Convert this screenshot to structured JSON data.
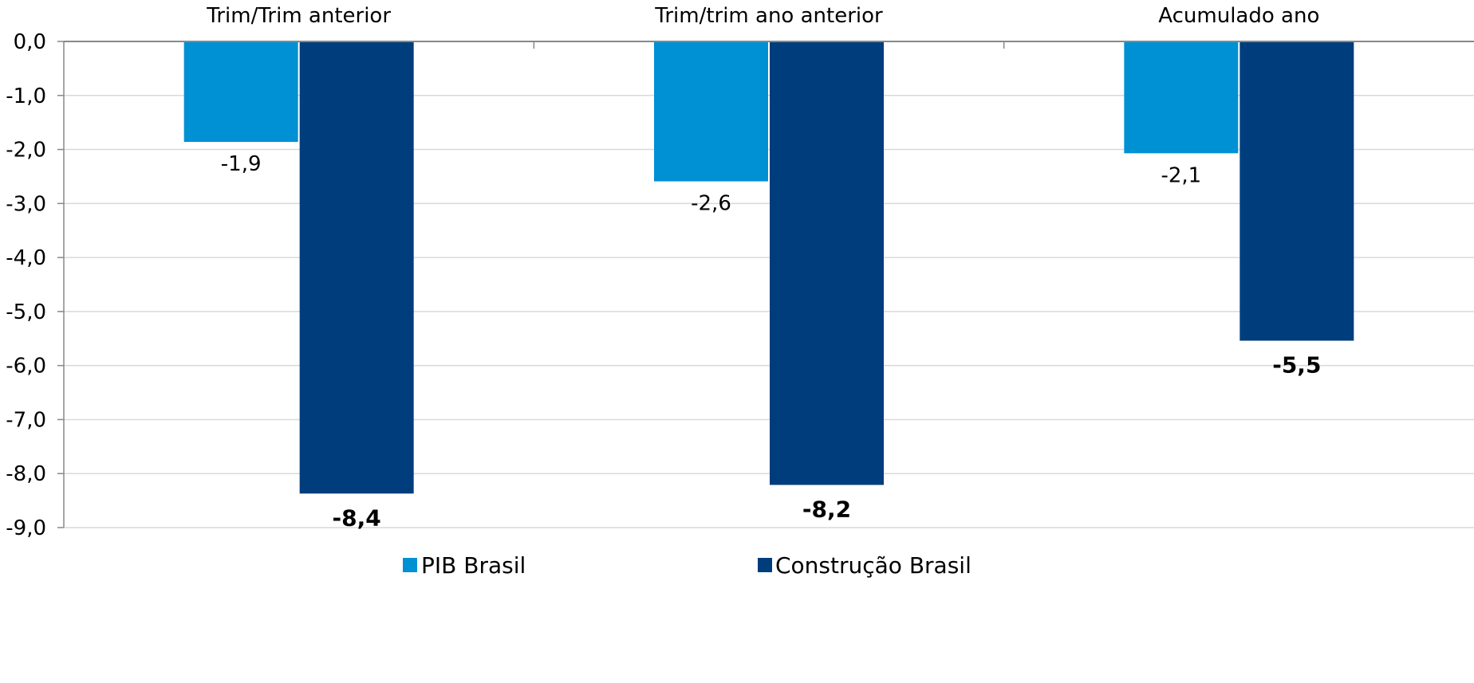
{
  "chart_data": {
    "type": "bar",
    "categories": [
      "Trim/Trim anterior",
      "Trim/trim ano anterior",
      "Acumulado ano"
    ],
    "series": [
      {
        "name": "PIB Brasil",
        "values": [
          -1.86,
          -2.59,
          -2.07
        ],
        "labels": [
          "-1,9",
          "-2,6",
          "-2,1"
        ],
        "color": "#0090d4",
        "label_bold": false
      },
      {
        "name": "Construção Brasil",
        "values": [
          -8.37,
          -8.21,
          -5.54
        ],
        "labels": [
          "-8,4",
          "-8,2",
          "-5,5"
        ],
        "color": "#003d7c",
        "label_bold": true
      }
    ],
    "yticks": [
      0,
      -1,
      -2,
      -3,
      -4,
      -5,
      -6,
      -7,
      -8,
      -9
    ],
    "ytick_labels": [
      "0,0",
      "-1,0",
      "-2,0",
      "-3,0",
      "-4,0",
      "-5,0",
      "-6,0",
      "-7,0",
      "-8,0",
      "-9,0"
    ],
    "ylim": [
      -9,
      0
    ],
    "category_axis_position": "top",
    "grid": true,
    "legend_position": "bottom",
    "title": "",
    "xlabel": "",
    "ylabel": ""
  }
}
